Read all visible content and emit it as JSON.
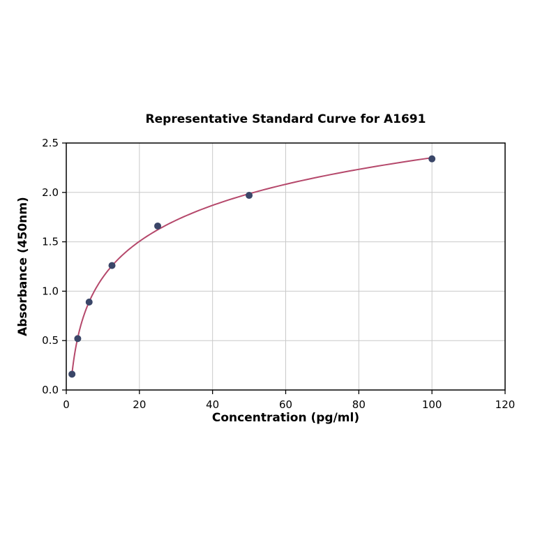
{
  "chart_data": {
    "type": "scatter",
    "title": "Representative Standard Curve for A1691",
    "xlabel": "Concentration (pg/ml)",
    "ylabel": "Absorbance (450nm)",
    "xlim": [
      0,
      120
    ],
    "ylim": [
      0,
      2.5
    ],
    "xticks": [
      0,
      20,
      40,
      60,
      80,
      100,
      120
    ],
    "yticks": [
      0.0,
      0.5,
      1.0,
      1.5,
      2.0,
      2.5
    ],
    "grid": true,
    "legend": "none",
    "points": {
      "x": [
        1.56,
        3.13,
        6.25,
        12.5,
        25,
        50,
        100
      ],
      "y": [
        0.16,
        0.52,
        0.89,
        1.26,
        1.66,
        1.97,
        2.34
      ]
    },
    "fit_type": "logarithmic",
    "colors": {
      "point": "#3a4668",
      "curve": "#b5486b",
      "grid": "#c9c9c9",
      "axis": "#000000",
      "background": "#ffffff"
    }
  }
}
